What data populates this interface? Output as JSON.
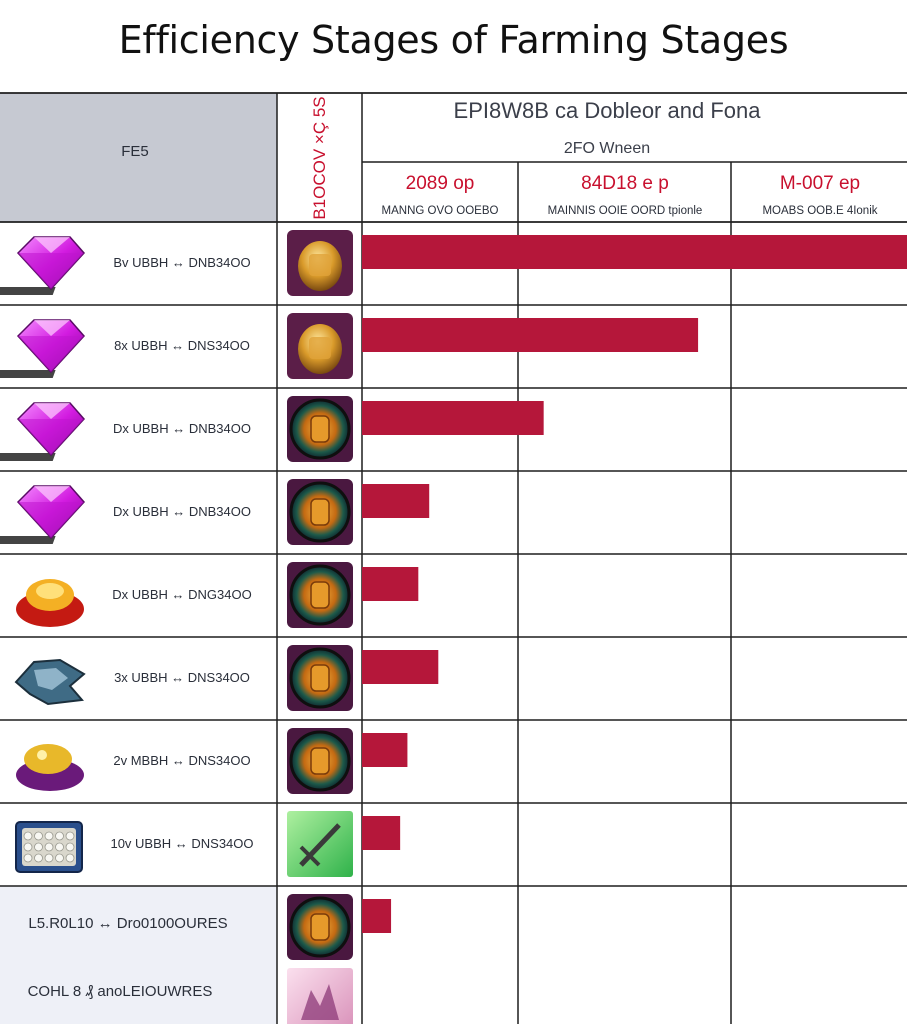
{
  "title": "Efficiency Stages of Farming Stages",
  "header": {
    "row_label": "FE5",
    "vertical_label": "B1OCOV ×Ç 5S",
    "group_title": "EPI8W8B ca Dobleor and Fona",
    "group_subtitle": "2FO Wneen",
    "columns": [
      {
        "label": "2089 op",
        "sub": "MANNG OVO OOEBO"
      },
      {
        "label": "84D18 e p",
        "sub": "MAINNIS OOIE OORD tpionle"
      },
      {
        "label": "M-007 ep",
        "sub": "MOABS OOB.E 4Ionik"
      }
    ]
  },
  "colors": {
    "bar": "#b5173a",
    "grid": "#1f1f1f",
    "header_fill": "#c6c9d2",
    "header_text": "#2a2f3a",
    "accent_text": "#c8102e",
    "footer_fill": "#eef0f7"
  },
  "chart_data": {
    "type": "bar",
    "orientation": "horizontal",
    "grid": true,
    "xlim": [
      0,
      3
    ],
    "categories": [
      "Bv UBBH ↔ DNB34OO",
      "8x UBBH ↔ DNS34OO",
      "Dx UBBH ↔ DNB34OO",
      "Dx UBBH ↔ DNB34OO",
      "Dx UBBH ↔ DNG34OO",
      "3x UBBH ↔ DNS34OO",
      "2v MBBH ↔ DNS34OO",
      "10v UBBH ↔ DNS34OO",
      "L5.R0L10 ↔ Dro0100OURES"
    ],
    "values": [
      3.0,
      1.85,
      1.0,
      0.37,
      0.31,
      0.42,
      0.25,
      0.21,
      0.16
    ],
    "footer_label": "COHL 8 ₰ anoLEIOUWRES",
    "row_icons": [
      [
        "pink-gem-icon",
        "gold-armor-icon"
      ],
      [
        "pink-gem-icon",
        "gold-armor-icon"
      ],
      [
        "pink-gem-icon",
        "ring-emblem-icon"
      ],
      [
        "pink-gem-icon",
        "ring-emblem-icon"
      ],
      [
        "fire-gold-pile-icon",
        "ring-emblem-icon"
      ],
      [
        "steel-dragon-icon",
        "ring-emblem-icon"
      ],
      [
        "purple-gold-pile-icon",
        "ring-emblem-icon"
      ],
      [
        "pearl-chest-icon",
        "green-sword-icon"
      ],
      [
        "none",
        "ring-emblem-icon"
      ],
      [
        "none",
        "pink-crystal-icon"
      ]
    ]
  }
}
